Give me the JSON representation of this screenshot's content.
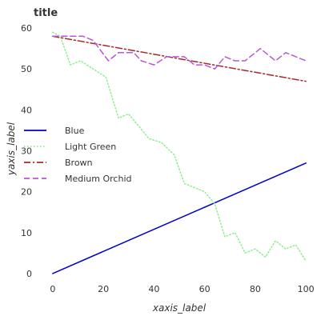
{
  "chart_data": {
    "type": "line",
    "title": "title",
    "xlabel": "xaxis_label",
    "ylabel": "yaxis_label",
    "xlim": [
      -5,
      105
    ],
    "ylim": [
      -1,
      61
    ],
    "xticks": [
      0,
      20,
      40,
      60,
      80,
      100
    ],
    "yticks": [
      0,
      10,
      20,
      30,
      40,
      50,
      60
    ],
    "grid": false,
    "legend_position": "bottom-left",
    "series": [
      {
        "name": "Blue",
        "color": "#0000cd",
        "dash": "solid",
        "x": [
          0,
          100
        ],
        "y": [
          0,
          27
        ]
      },
      {
        "name": "Light Green",
        "color": "#90ee90",
        "dash": "dotted",
        "x": [
          0,
          3,
          7,
          11,
          16,
          21,
          26,
          30,
          34,
          38,
          43,
          48,
          52,
          56,
          60,
          64,
          68,
          72,
          76,
          80,
          84,
          88,
          92,
          96,
          100
        ],
        "y": [
          59,
          58,
          51,
          52,
          50,
          48,
          38,
          39,
          36,
          33,
          32,
          29,
          22,
          21,
          20,
          17,
          9,
          10,
          5,
          6,
          4,
          8,
          6,
          7,
          3
        ]
      },
      {
        "name": "Brown",
        "color": "#a52a2a",
        "dash": "dashdot",
        "x": [
          0,
          100
        ],
        "y": [
          58,
          47
        ]
      },
      {
        "name": "Medium Orchid",
        "color": "#ba55d3",
        "dash": "dashed",
        "x": [
          0,
          5,
          12,
          16,
          22,
          26,
          32,
          35,
          40,
          45,
          52,
          56,
          60,
          64,
          68,
          72,
          76,
          82,
          88,
          92,
          100
        ],
        "y": [
          58,
          58,
          58,
          57,
          52,
          54,
          54,
          52,
          51,
          53,
          53,
          51,
          51,
          50,
          53,
          52,
          52,
          55,
          52,
          54,
          52
        ]
      }
    ]
  }
}
